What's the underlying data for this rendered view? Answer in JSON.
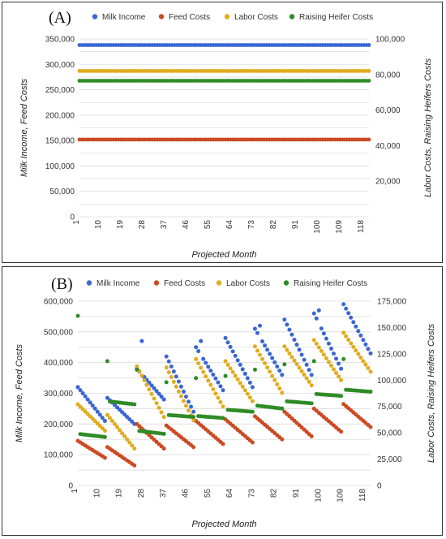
{
  "chart_data": [
    {
      "panel_label": "(A)",
      "type": "scatter",
      "xlabel": "Projected Month",
      "ylabel_left": "Milk Income, Feed Costs",
      "ylabel_right": "Labor Costs, Raising Heifers Costs",
      "x_range": [
        1,
        120
      ],
      "x_ticks": [
        1,
        10,
        19,
        28,
        37,
        46,
        55,
        64,
        73,
        82,
        91,
        100,
        109,
        118
      ],
      "ylim_left": [
        0,
        350000
      ],
      "yticks_left": [
        0,
        50000,
        100000,
        150000,
        200000,
        250000,
        300000,
        350000
      ],
      "yticklabels_left": [
        "0",
        "50,000",
        "100,000",
        "150,000",
        "200,000",
        "250,000",
        "300,000",
        "350,000"
      ],
      "ylim_right": [
        0,
        100000
      ],
      "yticks_right": [
        20000,
        40000,
        60000,
        80000,
        100000
      ],
      "yticklabels_right": [
        "20,000",
        "40,000",
        "60,000",
        "80,000",
        "100,000"
      ],
      "legend_position": "top",
      "grid": true,
      "series": [
        {
          "name": "Milk Income",
          "color": "#3a66d4",
          "axis": "left",
          "values_constant": 338000
        },
        {
          "name": "Feed Costs",
          "color": "#cc4a22",
          "axis": "left",
          "values_constant": 152000
        },
        {
          "name": "Labor Costs",
          "color": "#e0ac1e",
          "axis": "right",
          "values_constant": 82000
        },
        {
          "name": "Raising Heifer Costs",
          "color": "#2e8b26",
          "axis": "right",
          "values_constant": 76500
        }
      ]
    },
    {
      "panel_label": "(B)",
      "type": "scatter",
      "xlabel": "Projected Month",
      "ylabel_left": "Milk Income, Feed Costs",
      "ylabel_right": "Labor Costs, Raising Heifers Costs",
      "x_range": [
        1,
        120
      ],
      "x_ticks": [
        1,
        10,
        19,
        28,
        37,
        46,
        55,
        64,
        73,
        82,
        91,
        100,
        109,
        118
      ],
      "ylim_left": [
        0,
        600000
      ],
      "yticks_left": [
        0,
        100000,
        200000,
        300000,
        400000,
        500000,
        600000
      ],
      "yticklabels_left": [
        "0",
        "100,000",
        "200,000",
        "300,000",
        "400,000",
        "500,000",
        "600,000"
      ],
      "ylim_right": [
        0,
        175000
      ],
      "yticks_right": [
        0,
        25000,
        50000,
        75000,
        100000,
        125000,
        150000,
        175000
      ],
      "yticklabels_right": [
        "0",
        "25,000",
        "50,000",
        "75,000",
        "100,000",
        "125,000",
        "150,000",
        "175,000"
      ],
      "legend_position": "top",
      "grid": true,
      "series": [
        {
          "name": "Milk Income",
          "color": "#3a66d4",
          "axis": "left",
          "cycles": [
            {
              "start": 1,
              "len": 12,
              "from": 320000,
              "to": 210000
            },
            {
              "start": 13,
              "len": 12,
              "from": 285000,
              "to": 200000
            },
            {
              "start": 25,
              "len": 12,
              "from": 380000,
              "to": 280000,
              "peak": 470000,
              "peak_at": 27
            },
            {
              "start": 37,
              "len": 12,
              "from": 420000,
              "to": 240000
            },
            {
              "start": 49,
              "len": 12,
              "from": 450000,
              "to": 310000,
              "peak": 470000,
              "peak_at": 51
            },
            {
              "start": 61,
              "len": 12,
              "from": 480000,
              "to": 320000
            },
            {
              "start": 73,
              "len": 12,
              "from": 510000,
              "to": 360000,
              "peak": 520000,
              "peak_at": 75
            },
            {
              "start": 85,
              "len": 12,
              "from": 540000,
              "to": 360000
            },
            {
              "start": 97,
              "len": 12,
              "from": 560000,
              "to": 380000,
              "peak": 570000,
              "peak_at": 99
            },
            {
              "start": 109,
              "len": 12,
              "from": 590000,
              "to": 430000
            }
          ]
        },
        {
          "name": "Feed Costs",
          "color": "#cc4a22",
          "axis": "left",
          "cycles": [
            {
              "start": 1,
              "len": 12,
              "from": 145000,
              "to": 90000
            },
            {
              "start": 13,
              "len": 12,
              "from": 125000,
              "to": 65000
            },
            {
              "start": 25,
              "len": 12,
              "from": 200000,
              "to": 120000
            },
            {
              "start": 37,
              "len": 12,
              "from": 195000,
              "to": 125000
            },
            {
              "start": 49,
              "len": 12,
              "from": 210000,
              "to": 135000
            },
            {
              "start": 61,
              "len": 12,
              "from": 215000,
              "to": 140000
            },
            {
              "start": 73,
              "len": 12,
              "from": 225000,
              "to": 150000
            },
            {
              "start": 85,
              "len": 12,
              "from": 240000,
              "to": 160000
            },
            {
              "start": 97,
              "len": 12,
              "from": 250000,
              "to": 175000
            },
            {
              "start": 109,
              "len": 12,
              "from": 265000,
              "to": 190000
            }
          ]
        },
        {
          "name": "Labor Costs",
          "color": "#e0ac1e",
          "axis": "right",
          "cycles": [
            {
              "start": 1,
              "len": 12,
              "from": 77000,
              "to": 52000
            },
            {
              "start": 13,
              "len": 12,
              "from": 67000,
              "to": 35000
            },
            {
              "start": 25,
              "len": 12,
              "from": 113000,
              "to": 65000
            },
            {
              "start": 37,
              "len": 12,
              "from": 112000,
              "to": 62000
            },
            {
              "start": 49,
              "len": 12,
              "from": 120000,
              "to": 75000
            },
            {
              "start": 61,
              "len": 12,
              "from": 118000,
              "to": 80000
            },
            {
              "start": 73,
              "len": 12,
              "from": 132000,
              "to": 88000
            },
            {
              "start": 85,
              "len": 12,
              "from": 132000,
              "to": 95000
            },
            {
              "start": 97,
              "len": 12,
              "from": 138000,
              "to": 100000
            },
            {
              "start": 109,
              "len": 12,
              "from": 145000,
              "to": 108000
            }
          ]
        },
        {
          "name": "Raising Heifer Costs",
          "color": "#2e8b26",
          "axis": "right",
          "cycles": [
            {
              "start": 1,
              "len": 12,
              "from": 49000,
              "to": 46000,
              "spike": 161000
            },
            {
              "start": 13,
              "len": 12,
              "from": 80000,
              "to": 77000,
              "spike": 118000
            },
            {
              "start": 25,
              "len": 12,
              "from": 52000,
              "to": 49000,
              "spike": 110000
            },
            {
              "start": 37,
              "len": 12,
              "from": 67000,
              "to": 65000,
              "spike": 98000
            },
            {
              "start": 49,
              "len": 12,
              "from": 66000,
              "to": 64000,
              "spike": 102000
            },
            {
              "start": 61,
              "len": 12,
              "from": 72000,
              "to": 70000,
              "spike": 104000
            },
            {
              "start": 73,
              "len": 12,
              "from": 76000,
              "to": 73000,
              "spike": 110000
            },
            {
              "start": 85,
              "len": 12,
              "from": 80000,
              "to": 78000,
              "spike": 115000
            },
            {
              "start": 97,
              "len": 12,
              "from": 87000,
              "to": 85000,
              "spike": 118000
            },
            {
              "start": 109,
              "len": 12,
              "from": 91000,
              "to": 89000,
              "spike": 120000
            }
          ]
        }
      ]
    }
  ]
}
